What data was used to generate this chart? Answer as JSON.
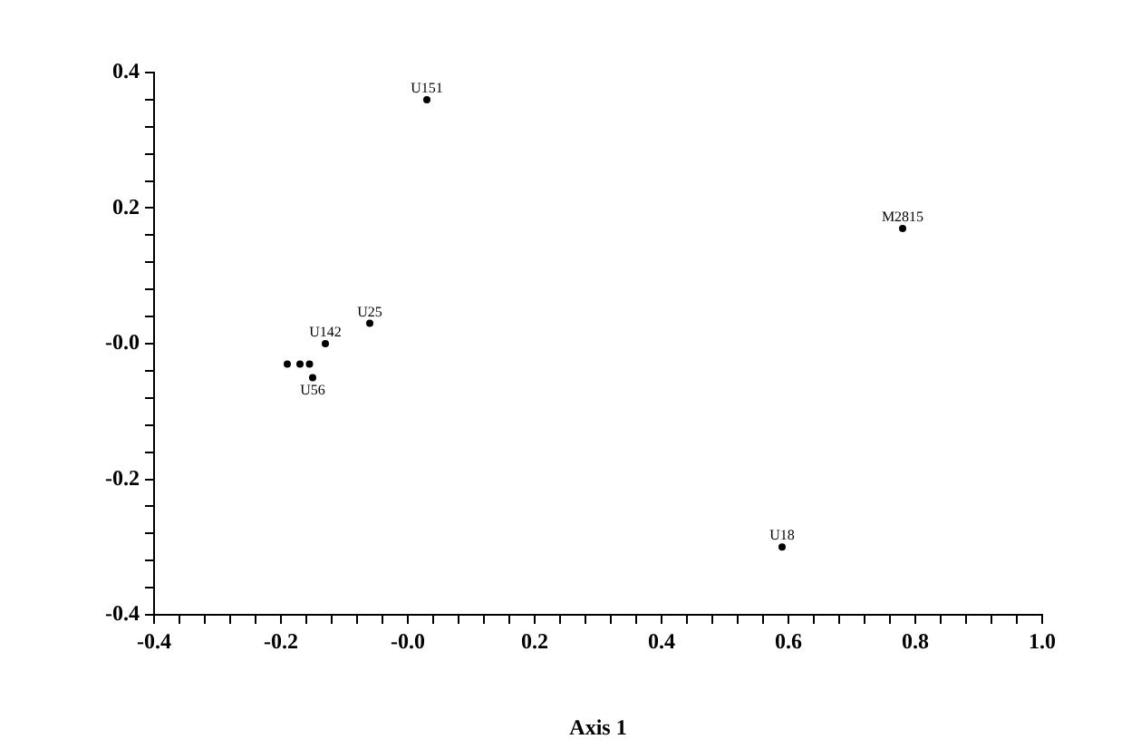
{
  "chart_data": {
    "type": "scatter",
    "xlabel": "Axis 1",
    "marker": "circle",
    "xlim": [
      -0.4,
      1.0
    ],
    "ylim": [
      -0.4,
      0.4
    ],
    "xticks": [
      -0.4,
      {
        "value": -0.36,
        "label": null
      },
      {
        "value": -0.32,
        "label": null
      },
      {
        "value": -0.28,
        "label": null
      },
      {
        "value": -0.24,
        "label": null
      },
      -0.2,
      {
        "value": -0.16,
        "label": null
      },
      {
        "value": -0.12,
        "label": null
      },
      {
        "value": -0.08,
        "label": null
      },
      {
        "value": -0.04,
        "label": null
      },
      {
        "value": 0,
        "label": "-0.0"
      },
      {
        "value": 0.04,
        "label": null
      },
      {
        "value": 0.08,
        "label": null
      },
      {
        "value": 0.12,
        "label": null
      },
      {
        "value": 0.16,
        "label": null
      },
      0.2,
      {
        "value": 0.24,
        "label": null
      },
      {
        "value": 0.28,
        "label": null
      },
      {
        "value": 0.32,
        "label": null
      },
      {
        "value": 0.36,
        "label": null
      },
      0.4,
      {
        "value": 0.44,
        "label": null
      },
      {
        "value": 0.48,
        "label": null
      },
      {
        "value": 0.52,
        "label": null
      },
      {
        "value": 0.56,
        "label": null
      },
      0.6,
      {
        "value": 0.64,
        "label": null
      },
      {
        "value": 0.68,
        "label": null
      },
      {
        "value": 0.72,
        "label": null
      },
      {
        "value": 0.76,
        "label": null
      },
      0.8,
      {
        "value": 0.84,
        "label": null
      },
      {
        "value": 0.88,
        "label": null
      },
      {
        "value": 0.92,
        "label": null
      },
      {
        "value": 0.96,
        "label": null
      },
      {
        "value": 1.0,
        "label": "1.0"
      }
    ],
    "yticks": [
      -0.4,
      {
        "value": -0.36,
        "label": null
      },
      {
        "value": -0.32,
        "label": null
      },
      {
        "value": -0.28,
        "label": null
      },
      {
        "value": -0.24,
        "label": null
      },
      -0.2,
      {
        "value": -0.16,
        "label": null
      },
      {
        "value": -0.12,
        "label": null
      },
      {
        "value": -0.08,
        "label": null
      },
      {
        "value": -0.04,
        "label": null
      },
      {
        "value": 0,
        "label": "-0.0"
      },
      {
        "value": 0.04,
        "label": null
      },
      {
        "value": 0.08,
        "label": null
      },
      {
        "value": 0.12,
        "label": null
      },
      {
        "value": 0.16,
        "label": null
      },
      0.2,
      {
        "value": 0.24,
        "label": null
      },
      {
        "value": 0.28,
        "label": null
      },
      {
        "value": 0.32,
        "label": null
      },
      {
        "value": 0.36,
        "label": null
      },
      0.4
    ],
    "series": [
      {
        "color": "#000000",
        "x": [
          0.03,
          0.78,
          -0.06,
          -0.13,
          -0.15,
          0.59,
          -0.19,
          -0.17,
          -0.155
        ],
        "values": [
          0.36,
          0.17,
          0.03,
          0.0,
          -0.05,
          -0.3,
          -0.03,
          -0.03,
          -0.03
        ],
        "value_labels": [
          "U151",
          "M2815",
          "U25",
          "U142",
          "U56",
          "U18",
          null,
          null,
          null
        ]
      }
    ]
  }
}
